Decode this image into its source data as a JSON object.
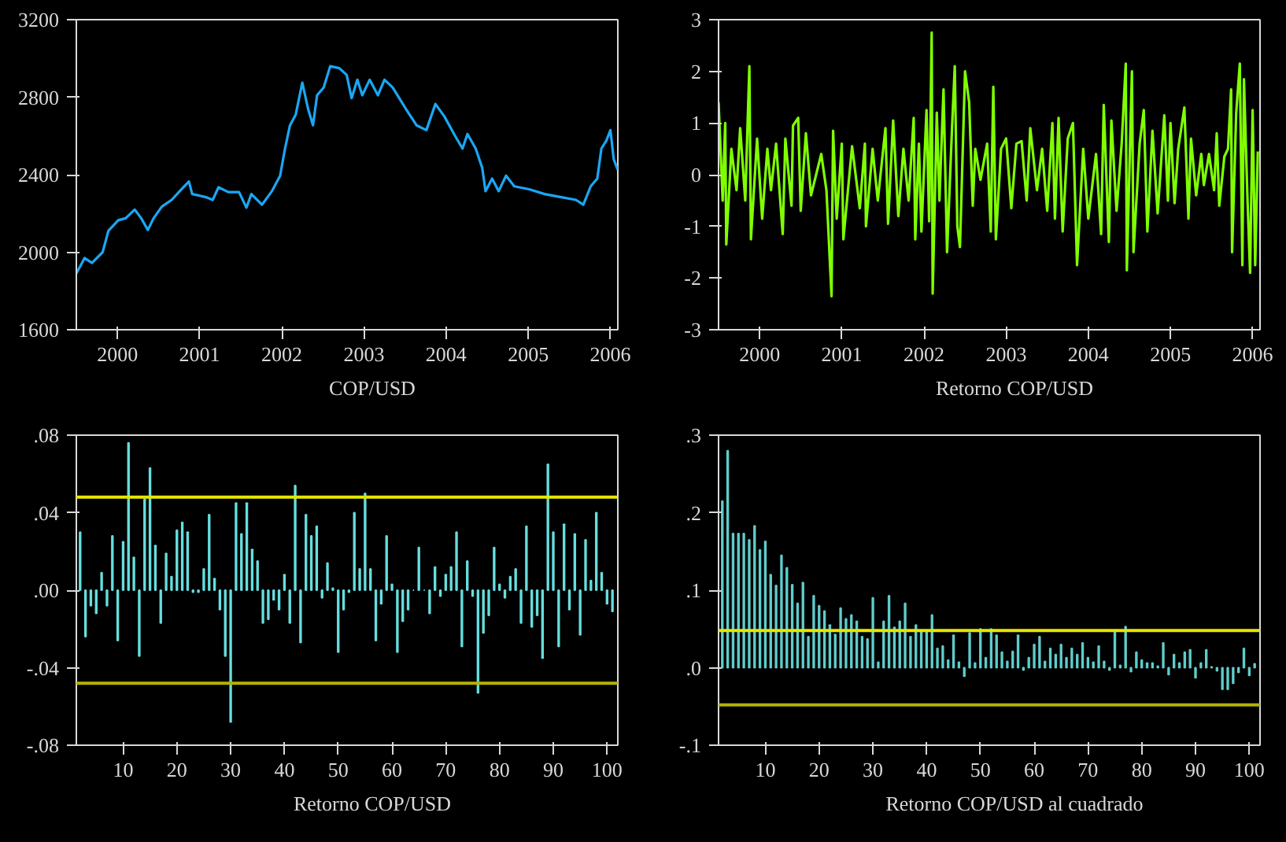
{
  "chart_data": [
    {
      "type": "line",
      "xlim": [
        2000,
        2006.59
      ],
      "ylim": [
        1600,
        3200
      ],
      "yticks": [
        1600,
        2000,
        2400,
        2800,
        3200
      ],
      "xticks": [
        {
          "value": 2000.5,
          "label": "2000"
        },
        {
          "value": 2001.5,
          "label": "2001"
        },
        {
          "value": 2002.5,
          "label": "2002"
        },
        {
          "value": 2003.5,
          "label": "2003"
        },
        {
          "value": 2004.5,
          "label": "2004"
        },
        {
          "value": 2005.5,
          "label": "2005"
        },
        {
          "value": 2006.5,
          "label": "2006"
        }
      ],
      "legend": "bottom",
      "series": [
        {
          "name": "COP/USD",
          "color": "#1aa7f5",
          "x": [
            2000.0,
            2000.1,
            2000.19,
            2000.32,
            2000.39,
            2000.51,
            2000.6,
            2000.71,
            2000.79,
            2000.87,
            2000.94,
            2001.04,
            2001.16,
            2001.27,
            2001.37,
            2001.41,
            2001.57,
            2001.66,
            2001.73,
            2001.85,
            2001.98,
            2002.07,
            2002.13,
            2002.26,
            2002.38,
            2002.48,
            2002.54,
            2002.6,
            2002.67,
            2002.75,
            2002.82,
            2002.88,
            2002.93,
            2003.01,
            2003.09,
            2003.2,
            2003.29,
            2003.35,
            2003.42,
            2003.48,
            2003.57,
            2003.67,
            2003.75,
            2003.85,
            2004.01,
            2004.14,
            2004.26,
            2004.37,
            2004.48,
            2004.61,
            2004.7,
            2004.76,
            2004.86,
            2004.94,
            2004.98,
            2005.06,
            2005.14,
            2005.23,
            2005.33,
            2005.51,
            2005.7,
            2005.89,
            2006.08,
            2006.17,
            2006.26,
            2006.34,
            2006.39,
            2006.45,
            2006.5,
            2006.54,
            2006.59
          ],
          "values": [
            1890,
            1970,
            1945,
            2000,
            2110,
            2165,
            2175,
            2220,
            2175,
            2115,
            2175,
            2235,
            2270,
            2320,
            2365,
            2300,
            2285,
            2270,
            2335,
            2310,
            2310,
            2230,
            2300,
            2245,
            2315,
            2395,
            2535,
            2655,
            2710,
            2875,
            2740,
            2655,
            2810,
            2850,
            2960,
            2950,
            2915,
            2795,
            2890,
            2810,
            2890,
            2810,
            2890,
            2850,
            2740,
            2655,
            2630,
            2765,
            2700,
            2600,
            2535,
            2610,
            2535,
            2435,
            2315,
            2380,
            2315,
            2395,
            2340,
            2325,
            2300,
            2285,
            2270,
            2245,
            2340,
            2380,
            2535,
            2575,
            2630,
            2480,
            2425
          ]
        }
      ]
    },
    {
      "type": "line",
      "xlim": [
        2000,
        2006.59
      ],
      "ylim": [
        -3,
        3
      ],
      "yticks": [
        -3,
        -2,
        -1,
        0,
        1,
        2,
        3
      ],
      "xticks": [
        {
          "value": 2000.5,
          "label": "2000"
        },
        {
          "value": 2001.5,
          "label": "2001"
        },
        {
          "value": 2002.5,
          "label": "2002"
        },
        {
          "value": 2003.5,
          "label": "2003"
        },
        {
          "value": 2004.5,
          "label": "2004"
        },
        {
          "value": 2005.5,
          "label": "2005"
        },
        {
          "value": 2006.5,
          "label": "2006"
        }
      ],
      "legend": "bottom",
      "series": [
        {
          "name": "Retorno COP/USD",
          "color": "#80ff00",
          "x": [
            2000.0,
            2000.05,
            2000.081,
            2000.094,
            2000.156,
            2000.219,
            2000.263,
            2000.325,
            2000.375,
            2000.394,
            2000.469,
            2000.531,
            2000.594,
            2000.638,
            2000.7,
            2000.781,
            2000.813,
            2000.888,
            2000.906,
            2000.969,
            2001.0,
            2001.063,
            2001.125,
            2001.25,
            2001.313,
            2001.375,
            2001.394,
            2001.438,
            2001.5,
            2001.519,
            2001.625,
            2001.719,
            2001.781,
            2001.794,
            2001.875,
            2001.938,
            2002.031,
            2002.063,
            2002.125,
            2002.188,
            2002.25,
            2002.313,
            2002.375,
            2002.394,
            2002.438,
            2002.469,
            2002.531,
            2002.563,
            2002.594,
            2002.606,
            2002.656,
            2002.688,
            2002.738,
            2002.781,
            2002.844,
            2002.875,
            2002.906,
            2002.938,
            2003.0,
            2003.05,
            2003.094,
            2003.125,
            2003.188,
            2003.269,
            2003.313,
            2003.344,
            2003.375,
            2003.438,
            2003.5,
            2003.563,
            2003.625,
            2003.688,
            2003.75,
            2003.794,
            2003.875,
            2003.938,
            2004.0,
            2004.063,
            2004.094,
            2004.138,
            2004.188,
            2004.25,
            2004.313,
            2004.363,
            2004.438,
            2004.5,
            2004.594,
            2004.656,
            2004.688,
            2004.75,
            2004.781,
            2004.844,
            2004.906,
            2004.956,
            2004.969,
            2005.031,
            2005.05,
            2005.125,
            2005.175,
            2005.219,
            2005.281,
            2005.344,
            2005.425,
            2005.469,
            2005.5,
            2005.55,
            2005.594,
            2005.669,
            2005.719,
            2005.75,
            2005.813,
            2005.875,
            2005.906,
            2005.969,
            2006.031,
            2006.063,
            2006.094,
            2006.156,
            2006.2,
            2006.238,
            2006.25,
            2006.3,
            2006.344,
            2006.375,
            2006.394,
            2006.438,
            2006.469,
            2006.5,
            2006.531,
            2006.563
          ],
          "values": [
            1.4,
            -0.5,
            1.0,
            -1.35,
            0.5,
            -0.3,
            0.9,
            -0.5,
            2.1,
            -1.25,
            0.7,
            -0.85,
            0.5,
            -0.3,
            0.6,
            -1.15,
            0.7,
            -0.6,
            0.95,
            1.1,
            -0.7,
            0.8,
            -0.4,
            0.4,
            -0.3,
            -2.35,
            0.85,
            -0.85,
            0.6,
            -1.25,
            0.55,
            -0.65,
            0.6,
            -1.0,
            0.5,
            -0.5,
            0.9,
            -0.95,
            1.05,
            -0.8,
            0.5,
            -0.5,
            1.1,
            -1.25,
            0.6,
            -1.1,
            1.25,
            -0.9,
            2.75,
            -2.3,
            1.2,
            -0.5,
            1.65,
            -1.5,
            1.0,
            2.1,
            -1.0,
            -1.4,
            2.0,
            1.4,
            -0.6,
            0.5,
            -0.1,
            0.6,
            -1.1,
            1.7,
            -1.25,
            0.5,
            0.7,
            -0.65,
            0.6,
            0.65,
            -0.5,
            0.9,
            -0.3,
            0.5,
            -0.7,
            1.0,
            -0.85,
            1.1,
            -1.1,
            0.7,
            1.0,
            -1.75,
            0.5,
            -0.85,
            0.4,
            -1.15,
            1.35,
            -1.3,
            1.05,
            -0.7,
            0.6,
            2.15,
            -1.85,
            2.0,
            -1.5,
            0.6,
            1.25,
            -1.1,
            0.85,
            -0.75,
            1.15,
            -0.5,
            1.0,
            -0.55,
            0.5,
            1.3,
            -0.85,
            0.7,
            -0.4,
            0.4,
            -0.2,
            0.4,
            -0.3,
            0.8,
            -0.6,
            0.35,
            0.5,
            1.65,
            -1.5,
            1.2,
            2.15,
            -1.75,
            1.85,
            -0.5,
            -1.9,
            1.25,
            -1.75,
            0.45
          ]
        }
      ]
    },
    {
      "type": "bar",
      "xlim": [
        1.3,
        102
      ],
      "xticks": [
        10,
        20,
        30,
        40,
        50,
        60,
        70,
        80,
        90,
        100
      ],
      "ylim": [
        -0.08,
        0.08
      ],
      "yticks": [
        {
          "value": -0.08,
          "label": "-.08"
        },
        {
          "value": -0.04,
          "label": "-.04"
        },
        {
          "value": 0,
          "label": ".00"
        },
        {
          "value": 0.04,
          "label": ".04"
        },
        {
          "value": 0.08,
          "label": ".08"
        }
      ],
      "legend": "bottom",
      "ref_lines": [
        {
          "axis": "y",
          "value": 0.048,
          "color": "#e6e600"
        },
        {
          "axis": "y",
          "value": -0.048,
          "color": "#b3b300"
        }
      ],
      "series": [
        {
          "name": "Retorno COP/USD",
          "color": "#66dede",
          "x": [
            2,
            3,
            4,
            5,
            6,
            7,
            8,
            9,
            10,
            11,
            12,
            13,
            14,
            15,
            16,
            17,
            18,
            19,
            20,
            21,
            22,
            23,
            24,
            25,
            26,
            27,
            28,
            29,
            30,
            31,
            32,
            33,
            34,
            35,
            36,
            37,
            38,
            39,
            40,
            41,
            42,
            43,
            44,
            45,
            46,
            47,
            48,
            49,
            50,
            51,
            52,
            53,
            54,
            55,
            56,
            57,
            58,
            59,
            60,
            61,
            62,
            63,
            64,
            65,
            66,
            67,
            68,
            69,
            70,
            71,
            72,
            73,
            74,
            75,
            76,
            77,
            78,
            79,
            80,
            81,
            82,
            83,
            84,
            85,
            86,
            87,
            88,
            89,
            90,
            91,
            92,
            93,
            94,
            95,
            96,
            97,
            98,
            99,
            100,
            101
          ],
          "values": [
            0.03,
            -0.024,
            -0.008,
            -0.012,
            0.009,
            -0.008,
            0.028,
            -0.026,
            0.025,
            0.076,
            0.017,
            -0.034,
            0.047,
            0.063,
            0.023,
            -0.017,
            0.019,
            0.007,
            0.031,
            0.035,
            0.03,
            -0.001,
            -0.001,
            0.011,
            0.039,
            0.006,
            -0.01,
            -0.034,
            -0.068,
            0.045,
            0.029,
            0.045,
            0.021,
            0.015,
            -0.017,
            -0.015,
            -0.005,
            -0.01,
            0.008,
            -0.017,
            0.054,
            -0.027,
            0.039,
            0.028,
            0.033,
            -0.004,
            0.014,
            0.001,
            -0.032,
            -0.01,
            -0.001,
            0.04,
            0.011,
            0.05,
            0.011,
            -0.026,
            -0.007,
            0.028,
            0.003,
            -0.032,
            -0.016,
            -0.01,
            0.0,
            0.022,
            0.0,
            -0.012,
            0.012,
            -0.003,
            0.008,
            0.012,
            0.03,
            -0.029,
            0.015,
            -0.003,
            -0.053,
            -0.022,
            -0.013,
            0.022,
            0.003,
            -0.004,
            0.007,
            0.011,
            -0.017,
            0.033,
            -0.019,
            -0.013,
            -0.035,
            0.065,
            0.03,
            -0.029,
            0.034,
            -0.01,
            0.029,
            -0.023,
            0.026,
            0.005,
            0.04,
            0.009,
            -0.007,
            -0.011
          ]
        }
      ]
    },
    {
      "type": "bar",
      "xlim": [
        1.3,
        102
      ],
      "xticks": [
        10,
        20,
        30,
        40,
        50,
        60,
        70,
        80,
        90,
        100
      ],
      "ylim": [
        -0.1,
        0.3
      ],
      "yticks": [
        {
          "value": -0.1,
          "label": "-.1"
        },
        {
          "value": 0,
          "label": ".0"
        },
        {
          "value": 0.1,
          "label": ".1"
        },
        {
          "value": 0.2,
          "label": ".2"
        },
        {
          "value": 0.3,
          "label": ".3"
        }
      ],
      "legend": "bottom",
      "ref_lines": [
        {
          "axis": "y",
          "value": 0.048,
          "color": "#e6e600"
        },
        {
          "axis": "y",
          "value": -0.048,
          "color": "#b3b300"
        }
      ],
      "series": [
        {
          "name": "Retorno COP/USD al cuadrado",
          "color": "#5fcccc",
          "x": [
            2,
            3,
            4,
            5,
            6,
            7,
            8,
            9,
            10,
            11,
            12,
            13,
            14,
            15,
            16,
            17,
            18,
            19,
            20,
            21,
            22,
            23,
            24,
            25,
            26,
            27,
            28,
            29,
            30,
            31,
            32,
            33,
            34,
            35,
            36,
            37,
            38,
            39,
            40,
            41,
            42,
            43,
            44,
            45,
            46,
            47,
            48,
            49,
            50,
            51,
            52,
            53,
            54,
            55,
            56,
            57,
            58,
            59,
            60,
            61,
            62,
            63,
            64,
            65,
            66,
            67,
            68,
            69,
            70,
            71,
            72,
            73,
            74,
            75,
            76,
            77,
            78,
            79,
            80,
            81,
            82,
            83,
            84,
            85,
            86,
            87,
            88,
            89,
            90,
            91,
            92,
            93,
            94,
            95,
            96,
            97,
            98,
            99,
            100,
            101
          ],
          "values": [
            0.215,
            0.28,
            0.173,
            0.173,
            0.173,
            0.165,
            0.183,
            0.152,
            0.163,
            0.12,
            0.106,
            0.145,
            0.129,
            0.107,
            0.083,
            0.11,
            0.04,
            0.093,
            0.08,
            0.073,
            0.055,
            0.043,
            0.077,
            0.063,
            0.068,
            0.06,
            0.04,
            0.037,
            0.09,
            0.007,
            0.06,
            0.093,
            0.052,
            0.06,
            0.083,
            0.04,
            0.055,
            0.046,
            0.046,
            0.068,
            0.025,
            0.028,
            0.01,
            0.042,
            0.007,
            -0.011,
            0.045,
            0.006,
            0.05,
            0.013,
            0.05,
            0.042,
            0.02,
            0.008,
            0.021,
            0.042,
            -0.003,
            0.013,
            0.03,
            0.04,
            0.008,
            0.025,
            0.017,
            0.03,
            0.013,
            0.025,
            0.017,
            0.032,
            0.013,
            0.007,
            0.028,
            0.008,
            -0.003,
            0.047,
            0.003,
            0.053,
            -0.005,
            0.02,
            0.01,
            0.006,
            0.006,
            0.002,
            0.032,
            -0.009,
            0.017,
            0.006,
            0.02,
            0.023,
            -0.013,
            0.006,
            0.023,
            0.001,
            -0.004,
            -0.028,
            -0.028,
            -0.02,
            -0.006,
            0.025,
            -0.01,
            0.005
          ]
        }
      ]
    }
  ]
}
